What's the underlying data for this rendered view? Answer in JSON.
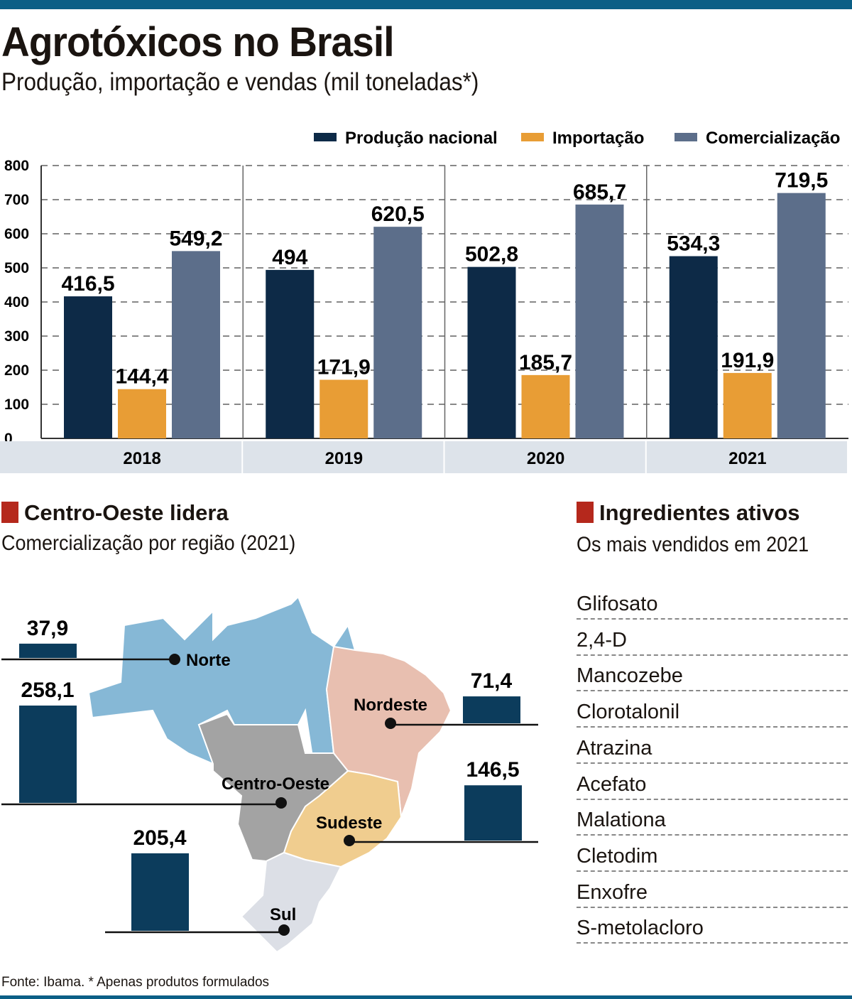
{
  "title": "Agrotóxicos no Brasil",
  "subtitle": "Produção, importação e vendas (mil toneladas*)",
  "colors": {
    "producao": "#0d2a47",
    "importacao": "#e89d35",
    "comercializacao": "#5c6e8a",
    "region_bar": "#0c3c5c",
    "accent": "#b5281c",
    "norte": "#86b8d6",
    "nordeste": "#e8bfb0",
    "centro_oeste": "#a3a3a3",
    "sudeste": "#f0cd8f",
    "sul": "#dcdfe6"
  },
  "chart_data": [
    {
      "type": "bar",
      "title": "Agrotóxicos no Brasil",
      "subtitle": "Produção, importação e vendas (mil toneladas*)",
      "categories": [
        "2018",
        "2019",
        "2020",
        "2021"
      ],
      "series": [
        {
          "name": "Produção nacional",
          "values": [
            416.5,
            494,
            502.8,
            534.3
          ],
          "labels": [
            "416,5",
            "494",
            "502,8",
            "534,3"
          ]
        },
        {
          "name": "Importação",
          "values": [
            144.4,
            171.9,
            185.7,
            191.9
          ],
          "labels": [
            "144,4",
            "171,9",
            "185,7",
            "191,9"
          ]
        },
        {
          "name": "Comercialização",
          "values": [
            549.2,
            620.5,
            685.7,
            719.5
          ],
          "labels": [
            "549,2",
            "620,5",
            "685,7",
            "719,5"
          ]
        }
      ],
      "ylim": [
        0,
        800
      ],
      "yticks": [
        "0",
        "100",
        "200",
        "300",
        "400",
        "500",
        "600",
        "700",
        "800"
      ],
      "grid": true,
      "legend": "top-right"
    },
    {
      "type": "bar",
      "title": "Centro-Oeste lidera",
      "subtitle": "Comercialização por região (2021)",
      "categories": [
        "Norte",
        "Centro-Oeste",
        "Sul",
        "Nordeste",
        "Sudeste"
      ],
      "values": [
        37.9,
        258.1,
        205.4,
        71.4,
        146.5
      ],
      "labels": [
        "37,9",
        "258,1",
        "205,4",
        "71,4",
        "146,5"
      ]
    }
  ],
  "ingredients": {
    "title": "Ingredientes ativos",
    "subtitle": "Os mais vendidos em 2021",
    "items": [
      "Glifosato",
      "2,4-D",
      "Mancozebe",
      "Clorotalonil",
      "Atrazina",
      "Acefato",
      "Malationa",
      "Cletodim",
      "Enxofre",
      "S-metolacloro"
    ]
  },
  "source": "Fonte: Ibama. * Apenas produtos formulados"
}
